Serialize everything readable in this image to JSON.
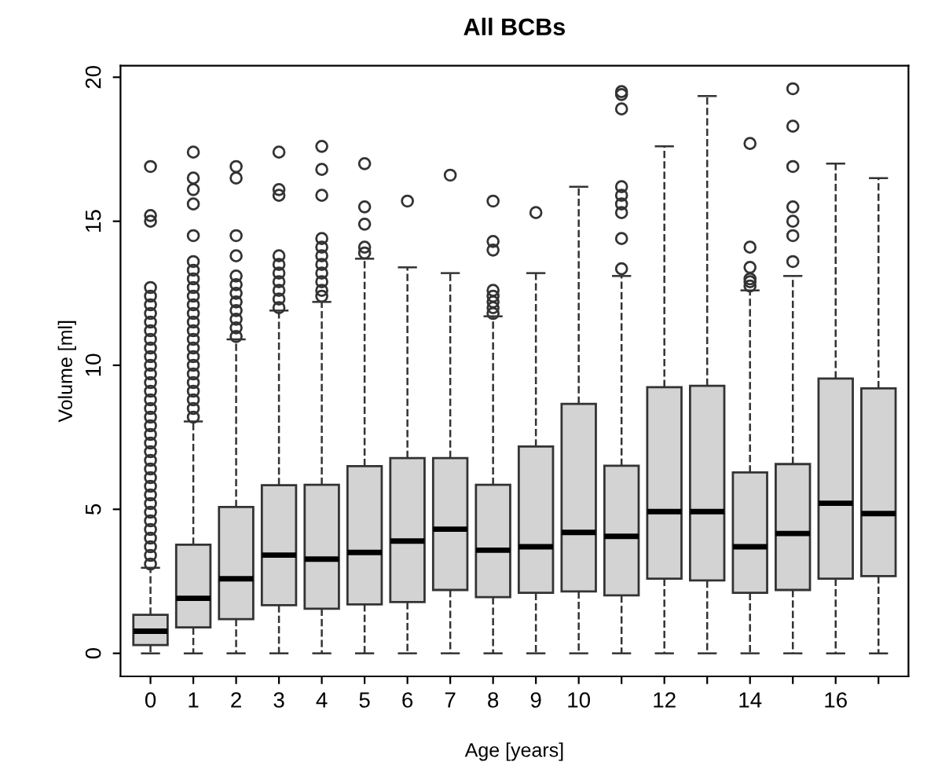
{
  "chart_data": {
    "type": "box",
    "title": "All BCBs",
    "xlabel": "Age [years]",
    "ylabel": "Volume [ml]",
    "categories": [
      "0",
      "1",
      "2",
      "3",
      "4",
      "5",
      "6",
      "7",
      "8",
      "9",
      "10",
      null,
      "12",
      null,
      "14",
      null,
      "16",
      null
    ],
    "ylim": [
      -0.8,
      20.4
    ],
    "yticks": [
      0,
      5,
      10,
      15,
      20
    ],
    "grid": false,
    "marker": "circle",
    "series": [
      {
        "color": "#d3d3d3",
        "boxes": [
          {
            "low": 0,
            "q1": 0.29,
            "median": 0.77,
            "q3": 1.34,
            "high": 2.97,
            "outliers": [
              3.1,
              3.4,
              3.7,
              4.0,
              4.3,
              4.6,
              4.9,
              5.2,
              5.5,
              5.8,
              6.1,
              6.4,
              6.7,
              7.0,
              7.3,
              7.6,
              7.9,
              8.2,
              8.5,
              8.8,
              9.1,
              9.4,
              9.7,
              10.0,
              10.3,
              10.6,
              10.9,
              11.2,
              11.5,
              11.8,
              12.1,
              12.4,
              12.7,
              15.0,
              15.2,
              16.9
            ]
          },
          {
            "low": 0,
            "q1": 0.9,
            "median": 1.91,
            "q3": 3.77,
            "high": 8.05,
            "outliers": [
              8.2,
              8.5,
              8.8,
              9.1,
              9.4,
              9.7,
              10.0,
              10.3,
              10.6,
              10.9,
              11.2,
              11.5,
              11.8,
              12.1,
              12.4,
              12.7,
              13.0,
              13.3,
              13.6,
              14.5,
              15.6,
              16.1,
              16.5,
              17.4
            ]
          },
          {
            "low": 0,
            "q1": 1.19,
            "median": 2.59,
            "q3": 5.08,
            "high": 10.9,
            "outliers": [
              11.0,
              11.3,
              11.6,
              11.9,
              12.2,
              12.5,
              12.8,
              13.1,
              13.8,
              14.5,
              16.5,
              16.9
            ]
          },
          {
            "low": 0,
            "q1": 1.67,
            "median": 3.41,
            "q3": 5.84,
            "high": 11.9,
            "outliers": [
              12.0,
              12.3,
              12.6,
              12.9,
              13.2,
              13.5,
              13.8,
              15.9,
              16.1,
              17.4
            ]
          },
          {
            "low": 0,
            "q1": 1.55,
            "median": 3.27,
            "q3": 5.85,
            "high": 12.2,
            "outliers": [
              12.4,
              12.6,
              12.9,
              13.2,
              13.5,
              13.8,
              14.1,
              14.4,
              15.9,
              16.8,
              17.6
            ]
          },
          {
            "low": 0,
            "q1": 1.7,
            "median": 3.5,
            "q3": 6.5,
            "high": 13.7,
            "outliers": [
              13.9,
              14.1,
              14.9,
              15.5,
              17.0
            ]
          },
          {
            "low": 0,
            "q1": 1.78,
            "median": 3.9,
            "q3": 6.78,
            "high": 13.4,
            "outliers": [
              15.7
            ]
          },
          {
            "low": 0,
            "q1": 2.2,
            "median": 4.31,
            "q3": 6.78,
            "high": 13.2,
            "outliers": [
              16.6
            ]
          },
          {
            "low": 0,
            "q1": 1.95,
            "median": 3.58,
            "q3": 5.85,
            "high": 11.7,
            "outliers": [
              11.8,
              12.0,
              12.2,
              12.4,
              12.6,
              14.0,
              14.3,
              15.7
            ]
          },
          {
            "low": 0,
            "q1": 2.1,
            "median": 3.7,
            "q3": 7.18,
            "high": 13.2,
            "outliers": [
              15.3
            ]
          },
          {
            "low": 0,
            "q1": 2.15,
            "median": 4.2,
            "q3": 8.66,
            "high": 16.2
          },
          {
            "low": 0,
            "q1": 2.01,
            "median": 4.06,
            "q3": 6.51,
            "high": 13.1,
            "outliers": [
              13.35,
              14.4,
              15.3,
              15.6,
              15.9,
              16.2,
              18.9,
              19.4,
              19.5
            ]
          },
          {
            "low": 0,
            "q1": 2.59,
            "median": 4.92,
            "q3": 9.24,
            "high": 17.6
          },
          {
            "low": 0,
            "q1": 2.53,
            "median": 4.92,
            "q3": 9.29,
            "high": 19.35
          },
          {
            "low": 0,
            "q1": 2.1,
            "median": 3.7,
            "q3": 6.28,
            "high": 12.6,
            "outliers": [
              12.75,
              12.9,
              13.0,
              13.4,
              14.1,
              17.7
            ]
          },
          {
            "low": 0,
            "q1": 2.2,
            "median": 4.16,
            "q3": 6.57,
            "high": 13.1,
            "outliers": [
              13.6,
              14.5,
              15.0,
              15.5,
              16.9,
              18.3,
              19.6
            ]
          },
          {
            "low": 0,
            "q1": 2.59,
            "median": 5.21,
            "q3": 9.54,
            "high": 17.0
          },
          {
            "low": 0,
            "q1": 2.68,
            "median": 4.85,
            "q3": 9.2,
            "high": 16.5
          }
        ]
      }
    ]
  }
}
